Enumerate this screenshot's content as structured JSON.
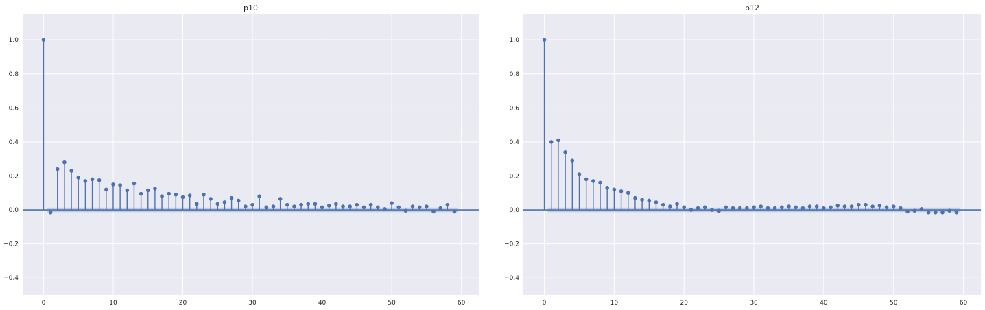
{
  "chart_data": [
    {
      "type": "stem",
      "title": "p10",
      "xlabel": "",
      "ylabel": "",
      "xlim": [
        -3,
        62.5
      ],
      "ylim": [
        -0.5,
        1.15
      ],
      "xticks": [
        0,
        10,
        20,
        30,
        40,
        50,
        60
      ],
      "yticks": [
        -0.4,
        -0.2,
        0.0,
        0.2,
        0.4,
        0.6,
        0.8,
        1.0
      ],
      "ytick_labels": [
        "−0.4",
        "−0.2",
        "0.0",
        "0.2",
        "0.4",
        "0.6",
        "0.8",
        "1.0"
      ],
      "confidence_band": 0.013,
      "grid": true,
      "color": "#4c72b0",
      "lags": [
        0,
        1,
        2,
        3,
        4,
        5,
        6,
        7,
        8,
        9,
        10,
        11,
        12,
        13,
        14,
        15,
        16,
        17,
        18,
        19,
        20,
        21,
        22,
        23,
        24,
        25,
        26,
        27,
        28,
        29,
        30,
        31,
        32,
        33,
        34,
        35,
        36,
        37,
        38,
        39,
        40,
        41,
        42,
        43,
        44,
        45,
        46,
        47,
        48,
        49,
        50,
        51,
        52,
        53,
        54,
        55,
        56,
        57,
        58,
        59
      ],
      "values": [
        1.0,
        -0.015,
        0.24,
        0.28,
        0.23,
        0.19,
        0.17,
        0.18,
        0.175,
        0.12,
        0.15,
        0.145,
        0.115,
        0.155,
        0.095,
        0.115,
        0.125,
        0.08,
        0.095,
        0.09,
        0.075,
        0.085,
        0.035,
        0.09,
        0.065,
        0.035,
        0.045,
        0.07,
        0.055,
        0.02,
        0.03,
        0.08,
        0.015,
        0.02,
        0.065,
        0.03,
        0.02,
        0.03,
        0.035,
        0.035,
        0.015,
        0.025,
        0.035,
        0.02,
        0.02,
        0.03,
        0.015,
        0.03,
        0.015,
        0.005,
        0.04,
        0.015,
        -0.005,
        0.02,
        0.015,
        0.02,
        -0.01,
        0.01,
        0.03,
        -0.01
      ]
    },
    {
      "type": "stem",
      "title": "p12",
      "xlabel": "",
      "ylabel": "",
      "xlim": [
        -3,
        62.5
      ],
      "ylim": [
        -0.5,
        1.15
      ],
      "xticks": [
        0,
        10,
        20,
        30,
        40,
        50,
        60
      ],
      "yticks": [
        -0.4,
        -0.2,
        0.0,
        0.2,
        0.4,
        0.6,
        0.8,
        1.0
      ],
      "ytick_labels": [
        "−0.4",
        "−0.2",
        "0.0",
        "0.2",
        "0.4",
        "0.6",
        "0.8",
        "1.0"
      ],
      "confidence_band": 0.013,
      "grid": true,
      "color": "#4c72b0",
      "lags": [
        0,
        1,
        2,
        3,
        4,
        5,
        6,
        7,
        8,
        9,
        10,
        11,
        12,
        13,
        14,
        15,
        16,
        17,
        18,
        19,
        20,
        21,
        22,
        23,
        24,
        25,
        26,
        27,
        28,
        29,
        30,
        31,
        32,
        33,
        34,
        35,
        36,
        37,
        38,
        39,
        40,
        41,
        42,
        43,
        44,
        45,
        46,
        47,
        48,
        49,
        50,
        51,
        52,
        53,
        54,
        55,
        56,
        57,
        58,
        59
      ],
      "values": [
        1.0,
        0.4,
        0.41,
        0.34,
        0.29,
        0.21,
        0.18,
        0.17,
        0.16,
        0.13,
        0.12,
        0.11,
        0.1,
        0.07,
        0.06,
        0.055,
        0.045,
        0.03,
        0.02,
        0.035,
        0.015,
        0.0,
        0.01,
        0.015,
        0.0,
        -0.005,
        0.015,
        0.01,
        0.01,
        0.01,
        0.015,
        0.02,
        0.01,
        0.01,
        0.015,
        0.02,
        0.015,
        0.01,
        0.02,
        0.02,
        0.01,
        0.015,
        0.025,
        0.02,
        0.02,
        0.03,
        0.03,
        0.02,
        0.025,
        0.015,
        0.02,
        0.01,
        -0.01,
        -0.005,
        0.005,
        -0.015,
        -0.015,
        -0.015,
        -0.005,
        -0.015
      ]
    }
  ]
}
